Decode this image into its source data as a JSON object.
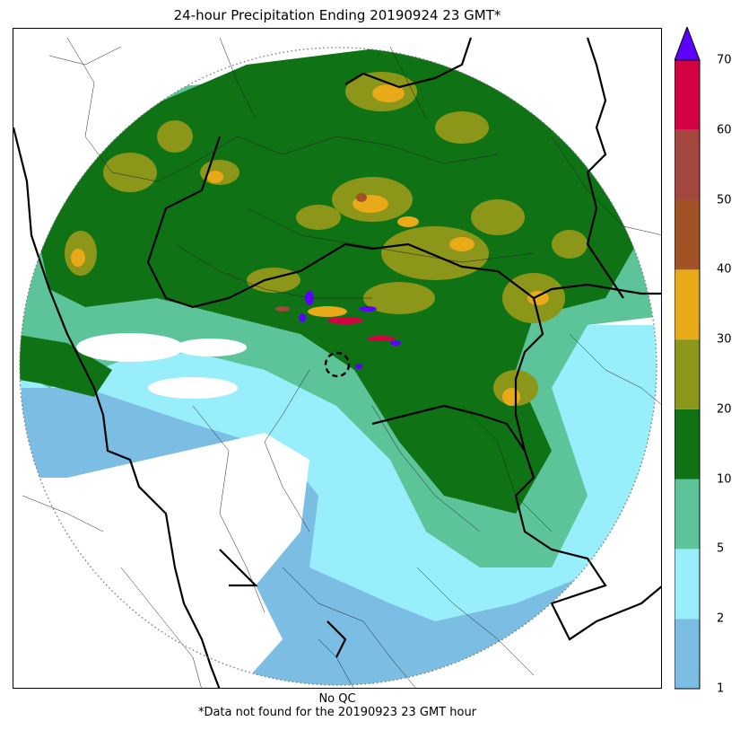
{
  "title": "24-hour Precipitation Ending 20190924 23 GMT*",
  "qc_label": "No QC",
  "footnote": "*Data not found for the 20190923 23 GMT hour",
  "colorbar": {
    "levels": [
      "1",
      "2",
      "5",
      "10",
      "20",
      "30",
      "40",
      "50",
      "60",
      "70"
    ],
    "colors": [
      "#7bbde3",
      "#99eefb",
      "#5dc49a",
      "#0f7316",
      "#8c9618",
      "#e8aa19",
      "#a35225",
      "#a3473f",
      "#d30342"
    ],
    "extend_color": "#5c00ff"
  },
  "map": {
    "type": "radar precipitation accumulation",
    "range_ring": "dotted",
    "radar_site_marker": "dashed circle"
  }
}
